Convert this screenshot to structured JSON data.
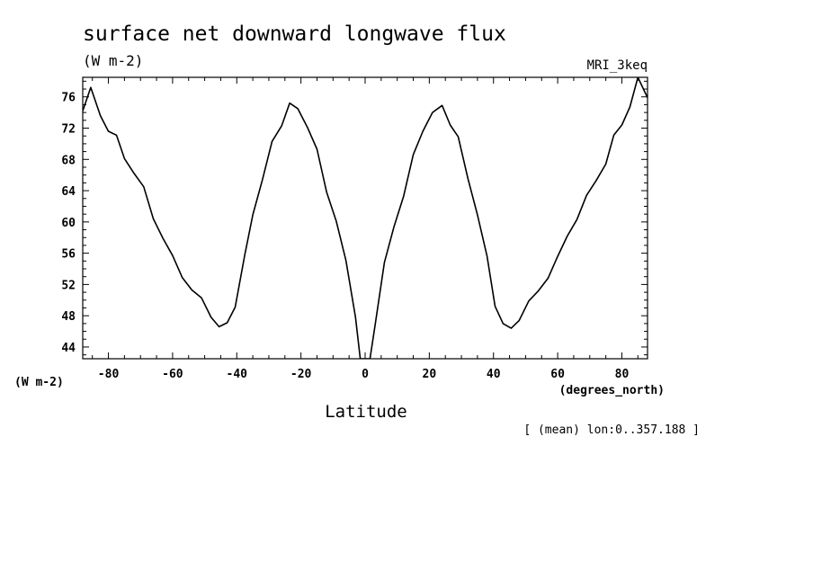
{
  "header": {
    "title": "surface net downward longwave flux",
    "units": "(W m-2)",
    "model": "MRI_3keq"
  },
  "footer": {
    "y_unit_label": "(W m-2)",
    "x_unit_label": "(degrees_north)",
    "x_title": "Latitude",
    "note": "[ (mean) lon:0..357.188 ]"
  },
  "chart_data": {
    "type": "line",
    "title": "surface net downward longwave flux",
    "xlabel": "Latitude",
    "ylabel": "(W m-2)",
    "xlim": [
      -88,
      88
    ],
    "ylim": [
      42.5,
      78.5
    ],
    "x_ticks": [
      -80,
      -60,
      -40,
      -20,
      0,
      20,
      40,
      60,
      80
    ],
    "y_ticks": [
      44,
      48,
      52,
      56,
      60,
      64,
      68,
      72,
      76
    ],
    "x_tick_labels": [
      "-80",
      "-60",
      "-40",
      "-20",
      "0",
      "20",
      "40",
      "60",
      "80"
    ],
    "y_tick_labels": [
      "44",
      "48",
      "52",
      "56",
      "60",
      "64",
      "68",
      "72",
      "76"
    ],
    "grid": false,
    "series": [
      {
        "color": "#000000",
        "x": [
          -88,
          -85.5,
          -82.5,
          -80,
          -77.5,
          -75,
          -72,
          -69,
          -66,
          -63,
          -60,
          -57,
          -54,
          -51,
          -48,
          -45.5,
          -43,
          -40.5,
          -37.5,
          -35,
          -32,
          -29,
          -26,
          -23.5,
          -21,
          -18,
          -15,
          -12,
          -9,
          -6,
          -3,
          -1.5,
          1.5,
          3,
          6,
          9,
          12,
          15,
          18,
          21,
          24,
          26.5,
          29,
          32,
          35,
          38,
          40.5,
          43,
          45.5,
          48,
          51,
          54,
          57,
          60,
          63,
          66,
          69,
          72,
          75,
          77.5,
          80,
          82.5,
          85,
          88
        ],
        "y": [
          74.2,
          77.2,
          73.6,
          71.6,
          71.1,
          68.1,
          66.2,
          64.5,
          60.4,
          57.9,
          55.7,
          52.9,
          51.3,
          50.3,
          47.8,
          46.6,
          47.1,
          49.1,
          55.8,
          60.9,
          65.4,
          70.3,
          72.3,
          75.2,
          74.5,
          72.1,
          69.3,
          63.8,
          60.1,
          55.1,
          47.8,
          42.5,
          42.5,
          46.5,
          54.8,
          59.4,
          63.3,
          68.6,
          71.6,
          74.0,
          74.9,
          72.4,
          70.9,
          65.6,
          60.9,
          55.6,
          49.2,
          47.0,
          46.4,
          47.4,
          49.9,
          51.2,
          52.8,
          55.6,
          58.2,
          60.3,
          63.4,
          65.3,
          67.4,
          71.1,
          72.4,
          74.7,
          78.5,
          75.9
        ]
      }
    ]
  }
}
